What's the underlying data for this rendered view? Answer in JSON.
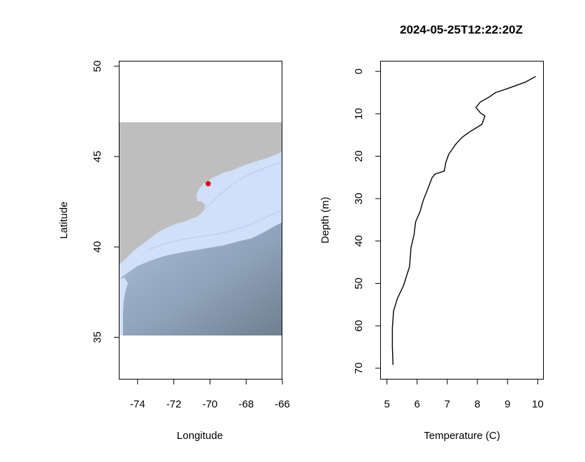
{
  "chart_data": [
    {
      "type": "map",
      "xlabel": "Longitude",
      "ylabel": "Latitude",
      "xlim": [
        -75,
        -66
      ],
      "ylim": [
        32.7,
        50.3
      ],
      "xticks": [
        -74,
        -72,
        -70,
        -68,
        -66
      ],
      "yticks": [
        35,
        40,
        45,
        50
      ],
      "xtick_labels": [
        "-74",
        "-72",
        "-70",
        "-68",
        "-66"
      ],
      "ytick_labels": [
        "35",
        "40",
        "45",
        "50"
      ],
      "map_extent": {
        "lon": [
          -75,
          -66
        ],
        "lat": [
          35.1,
          46.9
        ]
      },
      "station": {
        "lon": -70.1,
        "lat": 43.5,
        "color": "#e8001c"
      },
      "colors": {
        "land": "#bebebe",
        "shelf": "#cfe0f8",
        "deep": "#7f8ea0"
      },
      "grid": false
    },
    {
      "type": "line",
      "title": "2024-05-25T12:22:20Z",
      "xlabel": "Temperature (C)",
      "ylabel": "Depth (m)",
      "xlim": [
        5,
        10
      ],
      "ylim": [
        70,
        0
      ],
      "xticks": [
        5,
        6,
        7,
        8,
        9,
        10
      ],
      "yticks": [
        0,
        10,
        20,
        30,
        40,
        50,
        60,
        70
      ],
      "xtick_labels": [
        "5",
        "6",
        "7",
        "8",
        "9",
        "10"
      ],
      "ytick_labels": [
        "0",
        "10",
        "20",
        "30",
        "40",
        "50",
        "60",
        "70"
      ],
      "series": [
        {
          "x": [
            9.93,
            9.6,
            9.1,
            8.6,
            8.4,
            8.1,
            7.95,
            8.1,
            8.25,
            8.2,
            8.15,
            7.8,
            7.5,
            7.3,
            7.15,
            7.05,
            6.95,
            6.9,
            6.6,
            6.5,
            6.42,
            6.35,
            6.2,
            6.1,
            5.95,
            5.9,
            5.8,
            5.75,
            5.55,
            5.35,
            5.22,
            5.18,
            5.18,
            5.2
          ],
          "y": [
            1.2,
            2.5,
            3.8,
            5.0,
            6.0,
            7.2,
            8.5,
            9.8,
            10.5,
            11.5,
            12.5,
            14.0,
            15.5,
            17.0,
            18.5,
            19.5,
            21.5,
            23.5,
            24.2,
            25.0,
            26.5,
            27.8,
            30.5,
            33.0,
            35.5,
            38.5,
            41.5,
            46.0,
            50.5,
            53.5,
            56.5,
            60.5,
            65.0,
            69.2
          ],
          "color": "#000000"
        }
      ],
      "grid": false
    }
  ]
}
